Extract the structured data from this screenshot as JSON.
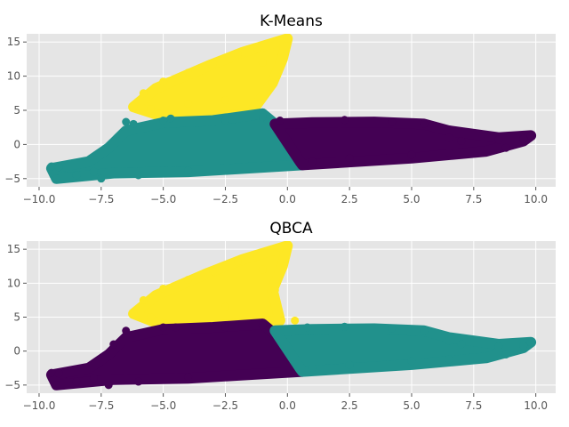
{
  "chart_data": [
    {
      "type": "scatter",
      "title": "K-Means",
      "xlabel": "",
      "ylabel": "",
      "xlim": [
        -10.5,
        10.8
      ],
      "ylim": [
        -6.2,
        16.2
      ],
      "xticks": [
        "−10.0",
        "−7.5",
        "−5.0",
        "−2.5",
        "0.0",
        "2.5",
        "5.0",
        "7.5",
        "10.0"
      ],
      "xtick_values": [
        -10,
        -7.5,
        -5,
        -2.5,
        0,
        2.5,
        5,
        7.5,
        10
      ],
      "yticks": [
        "−5",
        "0",
        "5",
        "10",
        "15"
      ],
      "ytick_values": [
        -5,
        0,
        5,
        10,
        15
      ],
      "grid": true,
      "background": "#e5e5e5",
      "series": [
        {
          "color": "#fde725",
          "region": [
            [
              -6.2,
              5.5
            ],
            [
              -5.3,
              8.2
            ],
            [
              -3.2,
              11.5
            ],
            [
              -1.8,
              13.5
            ],
            [
              0.0,
              15.5
            ],
            [
              -0.2,
              12.5
            ],
            [
              -0.6,
              9.0
            ],
            [
              -1.5,
              4.5
            ],
            [
              -4.5,
              3.5
            ]
          ],
          "points": [
            [
              -6.2,
              5.5
            ],
            [
              -5.8,
              7.5
            ],
            [
              -5.0,
              9.2
            ],
            [
              -4.0,
              10.5
            ],
            [
              -3.0,
              11.8
            ],
            [
              -2.0,
              13.2
            ],
            [
              -1.2,
              14.0
            ],
            [
              -0.3,
              15.2
            ],
            [
              0.0,
              15.5
            ],
            [
              -1.0,
              12.0
            ],
            [
              -0.6,
              9.0
            ],
            [
              -2.5,
              6.5
            ],
            [
              -4.0,
              6.0
            ],
            [
              -4.5,
              3.8
            ],
            [
              -5.5,
              5.2
            ]
          ]
        },
        {
          "color": "#21918c",
          "region": [
            [
              -9.5,
              -3.5
            ],
            [
              -8.0,
              -2.5
            ],
            [
              -7.2,
              -0.5
            ],
            [
              -6.5,
              2.0
            ],
            [
              -5.0,
              3.2
            ],
            [
              -3.0,
              3.5
            ],
            [
              -1.0,
              4.5
            ],
            [
              -0.5,
              3.0
            ],
            [
              0.5,
              -2.5
            ],
            [
              0.6,
              -3.0
            ],
            [
              -4.0,
              -4.0
            ],
            [
              -7.0,
              -4.2
            ],
            [
              -9.3,
              -5.0
            ]
          ],
          "points": [
            [
              -9.5,
              -3.2
            ],
            [
              -9.2,
              -3.3
            ],
            [
              -9.3,
              -5.0
            ],
            [
              -8.5,
              -4.5
            ],
            [
              -7.8,
              -4.0
            ],
            [
              -7.5,
              -5.0
            ],
            [
              -6.5,
              3.3
            ],
            [
              -6.2,
              3.0
            ],
            [
              -5.0,
              3.5
            ],
            [
              -4.7,
              3.8
            ],
            [
              -2.5,
              3.5
            ],
            [
              -1.0,
              4.0
            ],
            [
              -0.5,
              2.5
            ],
            [
              0.5,
              -2.5
            ],
            [
              -6.0,
              -4.5
            ],
            [
              -4.0,
              -3.8
            ]
          ]
        },
        {
          "color": "#440154",
          "region": [
            [
              -0.5,
              3.0
            ],
            [
              1.0,
              3.2
            ],
            [
              3.5,
              3.3
            ],
            [
              5.5,
              3.0
            ],
            [
              6.5,
              2.0
            ],
            [
              8.5,
              1.0
            ],
            [
              9.8,
              1.3
            ],
            [
              9.5,
              0.5
            ],
            [
              8.0,
              -1.0
            ],
            [
              5.0,
              -2.0
            ],
            [
              0.6,
              -3.0
            ],
            [
              0.5,
              -2.5
            ]
          ],
          "points": [
            [
              -0.3,
              3.5
            ],
            [
              2.3,
              3.6
            ],
            [
              4.2,
              3.3
            ],
            [
              5.5,
              3.0
            ],
            [
              6.5,
              1.0
            ],
            [
              7.0,
              0.5
            ],
            [
              8.5,
              0.7
            ],
            [
              9.8,
              1.3
            ],
            [
              9.5,
              0.8
            ],
            [
              8.8,
              -0.5
            ],
            [
              6.5,
              -1.2
            ],
            [
              5.0,
              -1.5
            ],
            [
              2.5,
              -2.0
            ],
            [
              1.0,
              -2.5
            ]
          ]
        }
      ]
    },
    {
      "type": "scatter",
      "title": "QBCA",
      "xlabel": "",
      "ylabel": "",
      "xlim": [
        -10.5,
        10.8
      ],
      "ylim": [
        -6.2,
        16.2
      ],
      "xticks": [
        "−10.0",
        "−7.5",
        "−5.0",
        "−2.5",
        "0.0",
        "2.5",
        "5.0",
        "7.5",
        "10.0"
      ],
      "xtick_values": [
        -10,
        -7.5,
        -5,
        -2.5,
        0,
        2.5,
        5,
        7.5,
        10
      ],
      "yticks": [
        "−5",
        "0",
        "5",
        "10",
        "15"
      ],
      "ytick_values": [
        -5,
        0,
        5,
        10,
        15
      ],
      "grid": true,
      "background": "#e5e5e5",
      "series": [
        {
          "color": "#fde725",
          "region": [
            [
              -6.2,
              5.5
            ],
            [
              -5.3,
              8.2
            ],
            [
              -3.2,
              11.5
            ],
            [
              -1.8,
              13.5
            ],
            [
              0.0,
              15.5
            ],
            [
              -0.2,
              12.5
            ],
            [
              -0.6,
              9.0
            ],
            [
              -0.3,
              4.5
            ],
            [
              -3.5,
              3.5
            ],
            [
              -5.0,
              3.8
            ]
          ],
          "points": [
            [
              -6.2,
              5.5
            ],
            [
              -5.8,
              7.5
            ],
            [
              -5.0,
              9.2
            ],
            [
              -4.0,
              10.5
            ],
            [
              -3.0,
              11.8
            ],
            [
              -2.0,
              13.2
            ],
            [
              -1.2,
              14.0
            ],
            [
              -0.3,
              15.2
            ],
            [
              0.0,
              15.5
            ],
            [
              -1.0,
              12.0
            ],
            [
              -0.5,
              9.0
            ],
            [
              -2.5,
              6.5
            ],
            [
              0.3,
              4.5
            ],
            [
              -5.5,
              5.0
            ]
          ]
        },
        {
          "color": "#440154",
          "region": [
            [
              -9.5,
              -3.5
            ],
            [
              -8.0,
              -2.5
            ],
            [
              -7.2,
              -0.5
            ],
            [
              -6.5,
              2.0
            ],
            [
              -5.0,
              3.2
            ],
            [
              -3.0,
              3.5
            ],
            [
              -1.0,
              4.0
            ],
            [
              -0.5,
              2.5
            ],
            [
              0.5,
              -2.5
            ],
            [
              0.6,
              -3.0
            ],
            [
              -4.0,
              -4.0
            ],
            [
              -7.0,
              -4.2
            ],
            [
              -9.3,
              -5.0
            ]
          ],
          "points": [
            [
              -9.5,
              -3.2
            ],
            [
              -9.2,
              -3.3
            ],
            [
              -9.3,
              -5.0
            ],
            [
              -8.5,
              -4.5
            ],
            [
              -7.8,
              -4.0
            ],
            [
              -7.2,
              -5.0
            ],
            [
              -7.0,
              1.0
            ],
            [
              -6.5,
              3.0
            ],
            [
              -5.0,
              3.5
            ],
            [
              -4.5,
              3.5
            ],
            [
              -2.5,
              3.5
            ],
            [
              -1.0,
              3.8
            ],
            [
              -0.5,
              2.0
            ],
            [
              0.5,
              -2.5
            ],
            [
              -6.0,
              -4.5
            ],
            [
              -4.0,
              -3.8
            ]
          ]
        },
        {
          "color": "#21918c",
          "region": [
            [
              -0.5,
              3.0
            ],
            [
              1.0,
              3.2
            ],
            [
              3.5,
              3.3
            ],
            [
              5.5,
              3.0
            ],
            [
              6.5,
              2.0
            ],
            [
              8.5,
              1.0
            ],
            [
              9.8,
              1.3
            ],
            [
              9.5,
              0.5
            ],
            [
              8.0,
              -1.0
            ],
            [
              5.0,
              -2.0
            ],
            [
              0.6,
              -3.0
            ],
            [
              0.5,
              -2.5
            ]
          ],
          "points": [
            [
              -0.3,
              3.0
            ],
            [
              0.8,
              3.5
            ],
            [
              2.3,
              3.6
            ],
            [
              4.2,
              3.3
            ],
            [
              5.5,
              3.0
            ],
            [
              6.5,
              1.5
            ],
            [
              7.0,
              1.0
            ],
            [
              8.5,
              0.7
            ],
            [
              9.8,
              1.3
            ],
            [
              9.5,
              0.8
            ],
            [
              8.8,
              -0.5
            ],
            [
              6.5,
              -1.2
            ],
            [
              5.0,
              -1.5
            ],
            [
              2.5,
              -2.0
            ],
            [
              1.0,
              -2.5
            ]
          ]
        }
      ]
    }
  ]
}
